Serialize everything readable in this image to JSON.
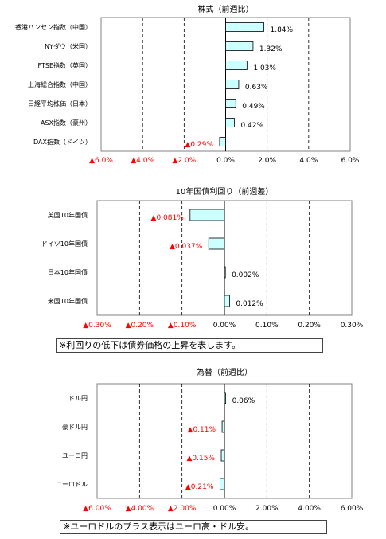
{
  "chart_data": [
    {
      "type": "bar",
      "orientation": "horizontal",
      "title": "株式（前週比）",
      "categories": [
        "香港ハンセン指数（中国）",
        "NYダウ（米国）",
        "FTSE指数（英国）",
        "上海総合指数（中国）",
        "日経平均株価（日本）",
        "ASX指数（豪州）",
        "DAX指数（ドイツ）"
      ],
      "values": [
        1.84,
        1.32,
        1.03,
        0.63,
        0.49,
        0.42,
        -0.29
      ],
      "value_labels": [
        "1.84%",
        "1.32%",
        "1.03%",
        "0.63%",
        "0.49%",
        "0.42%",
        "▲0.29%"
      ],
      "xlim": [
        -6,
        6
      ],
      "ticks": [
        -6,
        -4,
        -2,
        0,
        2,
        4,
        6
      ],
      "tick_labels": [
        "▲6.0%",
        "▲4.0%",
        "▲2.0%",
        "0.0%",
        "2.0%",
        "4.0%",
        "6.0%"
      ],
      "grid": "dashed vertical"
    },
    {
      "type": "bar",
      "orientation": "horizontal",
      "title": "10年国債利回り（前週差）",
      "categories": [
        "英国10年国債",
        "ドイツ10年国債",
        "日本10年国債",
        "米国10年国債"
      ],
      "values": [
        -0.081,
        -0.037,
        0.002,
        0.012
      ],
      "value_labels": [
        "▲0.081%",
        "▲0.037%",
        "0.002%",
        "0.012%"
      ],
      "xlim": [
        -0.3,
        0.3
      ],
      "ticks": [
        -0.3,
        -0.2,
        -0.1,
        0,
        0.1,
        0.2,
        0.3
      ],
      "tick_labels": [
        "▲0.30%",
        "▲0.20%",
        "▲0.10%",
        "0.00%",
        "0.10%",
        "0.20%",
        "0.30%"
      ],
      "grid": "dashed vertical"
    },
    {
      "type": "bar",
      "orientation": "horizontal",
      "title": "為替（前週比）",
      "categories": [
        "ドル円",
        "豪ドル円",
        "ユーロ円",
        "ユーロドル"
      ],
      "values": [
        0.06,
        -0.11,
        -0.15,
        -0.21
      ],
      "value_labels": [
        "0.06%",
        "▲0.11%",
        "▲0.15%",
        "▲0.21%"
      ],
      "xlim": [
        -6,
        6
      ],
      "ticks": [
        -6,
        -4,
        -2,
        0,
        2,
        4,
        6
      ],
      "tick_labels": [
        "▲6.00%",
        "▲4.00%",
        "▲2.00%",
        "0.00%",
        "2.00%",
        "4.00%",
        "6.00%"
      ],
      "grid": "dashed vertical"
    }
  ],
  "notes": {
    "bond_note": "※利回りの低下は債券価格の上昇を表します。",
    "fx_note": "※ユーロドルのプラス表示はユーロ高・ドル安。"
  },
  "colors": {
    "bar_fill": "#ccffff",
    "bar_stroke": "#000000",
    "negative_text": "#ff0000",
    "positive_text": "#000000"
  }
}
